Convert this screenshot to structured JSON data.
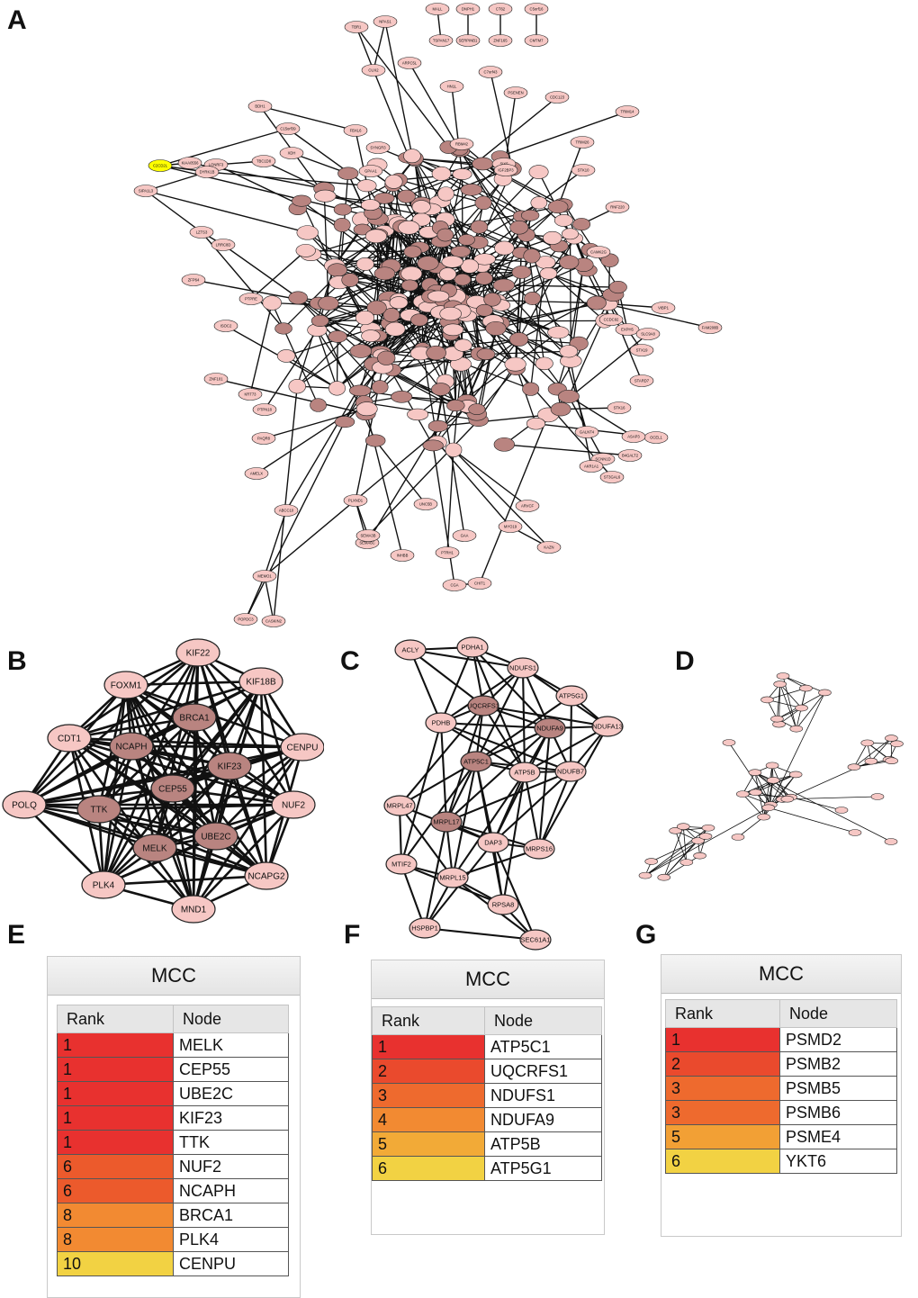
{
  "panels": {
    "A": "A",
    "B": "B",
    "C": "C",
    "D": "D",
    "E": "E",
    "F": "F",
    "G": "G"
  },
  "colors": {
    "node_fill": "#f6c7c4",
    "node_selected": "#b98480",
    "node_highlight": "#ffff00",
    "edge": "#111111"
  },
  "network_a": {
    "labeled_nodes": [
      "MALL",
      "DNPH1",
      "CT62",
      "C5orf16",
      "TSPAN17",
      "SERPINB1",
      "ZNF165",
      "CMTM7",
      "TBR1",
      "NPAS1",
      "CUX2",
      "ARPC5L",
      "C7orf43",
      "HN1L",
      "PSENEN",
      "CDC123",
      "TRIM14",
      "BDH1",
      "KIAA0556",
      "LONRF3",
      "C2CD2L",
      "DYRK1B",
      "SIPA1L3",
      "C15orf39",
      "TBC1D8",
      "XDH",
      "FBXL6",
      "SYNGR3",
      "GPAA1",
      "RBM42",
      "SIX5",
      "IGF2BP3",
      "TRIM26",
      "STK10",
      "RNF220",
      "ZFP64",
      "LZTS3",
      "LRRC8D",
      "PTPRE",
      "ISOC2",
      "CAMK2G",
      "CCDC92",
      "VIBP1",
      "FAM208B",
      "EXPH5",
      "SLC9A8",
      "STX19",
      "STARD7",
      "ZNF101",
      "KRT73",
      "PTPN18",
      "PAQR8",
      "AMELX",
      "ABCC10",
      "MEMO1",
      "POPDC3",
      "CASKIN2",
      "PLXND1",
      "UNC5B",
      "ARVCF",
      "MYO19",
      "KAZN",
      "CHIT1",
      "CGA",
      "GAA",
      "PTRH1",
      "INHBB",
      "SEMA6C",
      "SEMA3B",
      "OCEL1",
      "SCNN1D",
      "AKR1A1",
      "ST3GAL6",
      "STK16",
      "GALNT4",
      "ASAP3",
      "B4GALT2"
    ],
    "yellow_node": "C2CD2L"
  },
  "network_b": {
    "nodes": [
      "KIF22",
      "FOXM1",
      "KIF18B",
      "BRCA1",
      "CDT1",
      "NCAPH",
      "KIF23",
      "CENPU",
      "CEP55",
      "POLQ",
      "TTK",
      "NUF2",
      "UBE2C",
      "MELK",
      "PLK4",
      "NCAPG2",
      "MND1"
    ]
  },
  "network_c": {
    "nodes": [
      "ACLY",
      "PDHA1",
      "NDUFS1",
      "ATP5G1",
      "UQCRFS1",
      "NDUFA9",
      "PDHB",
      "NDUFA13",
      "ATP5C1",
      "ATP5B",
      "NDUFB7",
      "MRPL47",
      "MRPL17",
      "DAP3",
      "MRPS16",
      "MTIF2",
      "MRPL15",
      "RPSA8",
      "HSPBP1",
      "SEC61A1"
    ]
  },
  "tables": {
    "E": {
      "title": "MCC",
      "col_rank": "Rank",
      "col_node": "Node",
      "rows": [
        {
          "rank": "1",
          "node": "MELK",
          "color": "#e8312f"
        },
        {
          "rank": "1",
          "node": "CEP55",
          "color": "#e8312f"
        },
        {
          "rank": "1",
          "node": "UBE2C",
          "color": "#e8312f"
        },
        {
          "rank": "1",
          "node": "KIF23",
          "color": "#e8312f"
        },
        {
          "rank": "1",
          "node": "TTK",
          "color": "#e8312f"
        },
        {
          "rank": "6",
          "node": "NUF2",
          "color": "#ec5a2c"
        },
        {
          "rank": "6",
          "node": "NCAPH",
          "color": "#ec5a2c"
        },
        {
          "rank": "8",
          "node": "BRCA1",
          "color": "#f28a32"
        },
        {
          "rank": "8",
          "node": "PLK4",
          "color": "#f28a32"
        },
        {
          "rank": "10",
          "node": "CENPU",
          "color": "#f2d243"
        }
      ]
    },
    "F": {
      "title": "MCC",
      "col_rank": "Rank",
      "col_node": "Node",
      "rows": [
        {
          "rank": "1",
          "node": "ATP5C1",
          "color": "#e8312f"
        },
        {
          "rank": "2",
          "node": "UQCRFS1",
          "color": "#ea4a2d"
        },
        {
          "rank": "3",
          "node": "NDUFS1",
          "color": "#ee6a2e"
        },
        {
          "rank": "4",
          "node": "NDUFA9",
          "color": "#f28a32"
        },
        {
          "rank": "5",
          "node": "ATP5B",
          "color": "#f2aa37"
        },
        {
          "rank": "6",
          "node": "ATP5G1",
          "color": "#f2d243"
        }
      ]
    },
    "G": {
      "title": "MCC",
      "col_rank": "Rank",
      "col_node": "Node",
      "rows": [
        {
          "rank": "1",
          "node": "PSMD2",
          "color": "#e8312f"
        },
        {
          "rank": "2",
          "node": "PSMB2",
          "color": "#ea4a2d"
        },
        {
          "rank": "3",
          "node": "PSMB5",
          "color": "#ee6a2e"
        },
        {
          "rank": "3",
          "node": "PSMB6",
          "color": "#ee6a2e"
        },
        {
          "rank": "5",
          "node": "PSME4",
          "color": "#f2a035"
        },
        {
          "rank": "6",
          "node": "YKT6",
          "color": "#f2d243"
        }
      ]
    }
  }
}
